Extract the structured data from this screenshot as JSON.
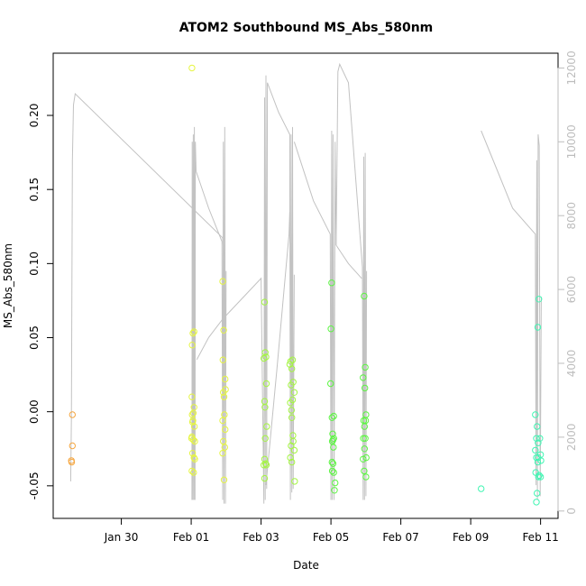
{
  "chart_data": {
    "type": "scatter",
    "title": "ATOM2 Southbound MS_Abs_580nm",
    "xlabel": "Date",
    "ylabel": "MS_Abs_580nm",
    "y2label": "",
    "grid": false,
    "legend": "none",
    "x_ticks": [
      {
        "label": "Jan 30",
        "day": 30
      },
      {
        "label": "Feb 01",
        "day": 32
      },
      {
        "label": "Feb 03",
        "day": 34
      },
      {
        "label": "Feb 05",
        "day": 36
      },
      {
        "label": "Feb 07",
        "day": 38
      },
      {
        "label": "Feb 09",
        "day": 40
      },
      {
        "label": "Feb 11",
        "day": 42
      }
    ],
    "xlim": [
      28.05,
      42.5
    ],
    "ylim": [
      -0.072,
      0.242
    ],
    "y_ticks": [
      -0.05,
      0.0,
      0.05,
      0.1,
      0.15,
      0.2
    ],
    "y_tick_labels": [
      "-0.05",
      "0.00",
      "0.05",
      "0.10",
      "0.15",
      "0.20"
    ],
    "y2lim": [
      -200,
      12400
    ],
    "y2_ticks": [
      0,
      2000,
      4000,
      6000,
      8000,
      10000,
      12000
    ],
    "y2_tick_labels": [
      "0",
      "2000",
      "4000",
      "6000",
      "8000",
      "10000",
      "12000"
    ],
    "depth_color": "#c2c2c2",
    "series": [
      {
        "color": "#f5a742",
        "points": [
          [
            28.6,
            -0.002
          ],
          [
            28.6,
            -0.023
          ],
          [
            28.57,
            -0.033
          ],
          [
            28.58,
            -0.034
          ]
        ]
      },
      {
        "color": "#e6f542",
        "points": [
          [
            32.02,
            0.232
          ],
          [
            32.05,
            0.053
          ],
          [
            32.08,
            0.054
          ],
          [
            32.03,
            0.045
          ],
          [
            32.02,
            0.01
          ],
          [
            32.03,
            -0.002
          ],
          [
            32.06,
            -0.001
          ],
          [
            32.08,
            0.003
          ],
          [
            32.04,
            -0.007
          ],
          [
            32.09,
            -0.01
          ],
          [
            32.02,
            -0.017
          ],
          [
            32.06,
            -0.019
          ],
          [
            32.1,
            -0.02
          ],
          [
            32.04,
            -0.028
          ],
          [
            32.08,
            -0.031
          ],
          [
            32.02,
            -0.04
          ],
          [
            32.07,
            -0.041
          ],
          [
            32.1,
            -0.032
          ],
          [
            32.05,
            -0.006
          ],
          [
            32.01,
            -0.018
          ],
          [
            32.9,
            0.088
          ],
          [
            32.93,
            0.055
          ],
          [
            32.91,
            0.035
          ],
          [
            32.97,
            0.022
          ],
          [
            32.92,
            0.013
          ],
          [
            32.94,
            0.01
          ],
          [
            32.98,
            0.015
          ],
          [
            32.9,
            -0.006
          ],
          [
            32.95,
            -0.002
          ],
          [
            32.92,
            -0.02
          ],
          [
            32.96,
            -0.024
          ],
          [
            32.9,
            -0.028
          ],
          [
            32.94,
            -0.046
          ],
          [
            32.97,
            -0.012
          ]
        ]
      },
      {
        "color": "#a4f542",
        "points": [
          [
            34.1,
            0.074
          ],
          [
            34.12,
            0.04
          ],
          [
            34.08,
            0.036
          ],
          [
            34.14,
            0.037
          ],
          [
            34.15,
            0.019
          ],
          [
            34.1,
            0.007
          ],
          [
            34.11,
            0.003
          ],
          [
            34.16,
            -0.01
          ],
          [
            34.12,
            -0.018
          ],
          [
            34.1,
            -0.032
          ],
          [
            34.08,
            -0.036
          ],
          [
            34.15,
            -0.036
          ],
          [
            34.1,
            -0.045
          ],
          [
            34.13,
            -0.035
          ],
          [
            34.85,
            0.034
          ],
          [
            34.9,
            0.035
          ],
          [
            34.88,
            0.029
          ],
          [
            34.82,
            0.032
          ],
          [
            34.92,
            0.02
          ],
          [
            34.86,
            0.018
          ],
          [
            34.95,
            0.013
          ],
          [
            34.9,
            0.008
          ],
          [
            34.84,
            0.006
          ],
          [
            34.88,
            -0.004
          ],
          [
            34.92,
            -0.02
          ],
          [
            34.86,
            -0.023
          ],
          [
            34.95,
            -0.026
          ],
          [
            34.84,
            -0.031
          ],
          [
            34.88,
            -0.034
          ],
          [
            34.96,
            -0.047
          ],
          [
            34.91,
            -0.016
          ],
          [
            34.87,
            0.001
          ]
        ]
      },
      {
        "color": "#5cf542",
        "points": [
          [
            36.02,
            0.087
          ],
          [
            36.0,
            0.056
          ],
          [
            35.99,
            0.019
          ],
          [
            36.03,
            -0.004
          ],
          [
            36.08,
            -0.003
          ],
          [
            36.05,
            -0.015
          ],
          [
            36.08,
            -0.018
          ],
          [
            36.04,
            -0.02
          ],
          [
            36.07,
            -0.024
          ],
          [
            36.03,
            -0.034
          ],
          [
            36.06,
            -0.035
          ],
          [
            36.04,
            -0.04
          ],
          [
            36.08,
            -0.041
          ],
          [
            36.12,
            -0.048
          ],
          [
            36.1,
            -0.053
          ],
          [
            36.06,
            -0.019
          ],
          [
            36.95,
            0.078
          ],
          [
            36.98,
            0.03
          ],
          [
            36.92,
            0.023
          ],
          [
            36.97,
            0.016
          ],
          [
            37.0,
            -0.002
          ],
          [
            36.94,
            -0.006
          ],
          [
            36.99,
            -0.006
          ],
          [
            36.96,
            -0.01
          ],
          [
            36.93,
            -0.018
          ],
          [
            36.98,
            -0.018
          ],
          [
            36.96,
            -0.025
          ],
          [
            37.01,
            -0.031
          ],
          [
            36.92,
            -0.032
          ],
          [
            36.95,
            -0.04
          ],
          [
            37.0,
            -0.044
          ]
        ]
      },
      {
        "color": "#42f5b3",
        "points": [
          [
            40.3,
            -0.052
          ],
          [
            41.95,
            0.076
          ],
          [
            41.92,
            0.057
          ],
          [
            41.85,
            -0.002
          ],
          [
            41.9,
            -0.01
          ],
          [
            41.98,
            -0.018
          ],
          [
            41.88,
            -0.018
          ],
          [
            41.93,
            -0.021
          ],
          [
            41.85,
            -0.026
          ],
          [
            42.0,
            -0.029
          ],
          [
            41.93,
            -0.031
          ],
          [
            41.88,
            -0.031
          ],
          [
            42.01,
            -0.033
          ],
          [
            41.86,
            -0.041
          ],
          [
            41.94,
            -0.044
          ],
          [
            42.0,
            -0.044
          ],
          [
            41.9,
            -0.055
          ],
          [
            41.88,
            -0.061
          ],
          [
            41.96,
            -0.043
          ],
          [
            41.92,
            -0.034
          ]
        ]
      }
    ],
    "depth_segments": [
      [
        [
          28.55,
          800
        ],
        [
          28.57,
          2500
        ],
        [
          28.6,
          9500
        ],
        [
          28.63,
          11000
        ],
        [
          28.68,
          11300
        ],
        [
          32.9,
          7400
        ],
        [
          32.93,
          6900
        ]
      ],
      [
        [
          32.02,
          300
        ],
        [
          32.03,
          10000
        ],
        [
          32.05,
          300
        ],
        [
          32.06,
          10200
        ],
        [
          32.08,
          300
        ],
        [
          32.09,
          10400
        ],
        [
          32.11,
          300
        ],
        [
          32.12,
          10000
        ],
        [
          32.14,
          9200
        ]
      ],
      [
        [
          32.14,
          9200
        ],
        [
          32.5,
          8200
        ],
        [
          32.88,
          7300
        ],
        [
          32.9,
          300
        ],
        [
          32.92,
          10000
        ],
        [
          32.94,
          200
        ],
        [
          32.96,
          10400
        ],
        [
          32.98,
          200
        ],
        [
          33.0,
          6500
        ]
      ],
      [
        [
          32.16,
          4100
        ],
        [
          32.5,
          4700
        ],
        [
          32.9,
          5200
        ],
        [
          33.3,
          5600
        ],
        [
          34.0,
          6300
        ],
        [
          34.08,
          200
        ],
        [
          34.1,
          11200
        ],
        [
          34.12,
          300
        ],
        [
          34.14,
          11800
        ],
        [
          34.16,
          600
        ],
        [
          34.18,
          11600
        ]
      ],
      [
        [
          34.18,
          11600
        ],
        [
          34.5,
          10800
        ],
        [
          34.82,
          10200
        ],
        [
          34.84,
          300
        ],
        [
          34.86,
          10200
        ],
        [
          34.88,
          500
        ],
        [
          34.9,
          10400
        ],
        [
          34.92,
          600
        ],
        [
          34.95,
          6400
        ]
      ],
      [
        [
          34.14,
          700
        ],
        [
          34.45,
          3800
        ],
        [
          34.8,
          7500
        ],
        [
          34.82,
          8100
        ]
      ],
      [
        [
          34.95,
          10000
        ],
        [
          35.5,
          8400
        ],
        [
          35.98,
          7500
        ],
        [
          36.0,
          300
        ],
        [
          36.02,
          10300
        ],
        [
          36.04,
          300
        ],
        [
          36.06,
          10200
        ],
        [
          36.09,
          300
        ],
        [
          36.12,
          10000
        ],
        [
          36.15,
          7200
        ]
      ],
      [
        [
          36.15,
          7200
        ],
        [
          36.2,
          11900
        ],
        [
          36.25,
          12100
        ],
        [
          36.5,
          11600
        ],
        [
          36.9,
          6600
        ],
        [
          36.92,
          300
        ],
        [
          36.94,
          9600
        ],
        [
          36.96,
          300
        ],
        [
          36.98,
          9700
        ],
        [
          37.0,
          400
        ],
        [
          37.02,
          6500
        ]
      ],
      [
        [
          36.15,
          7200
        ],
        [
          36.5,
          6700
        ],
        [
          36.88,
          6300
        ]
      ],
      [
        [
          40.3,
          10300
        ],
        [
          41.2,
          8200
        ],
        [
          41.85,
          7500
        ],
        [
          41.87,
          700
        ],
        [
          41.89,
          9500
        ],
        [
          41.91,
          300
        ],
        [
          41.93,
          10200
        ],
        [
          41.96,
          9900
        ],
        [
          41.99,
          400
        ],
        [
          42.02,
          5800
        ]
      ]
    ]
  }
}
